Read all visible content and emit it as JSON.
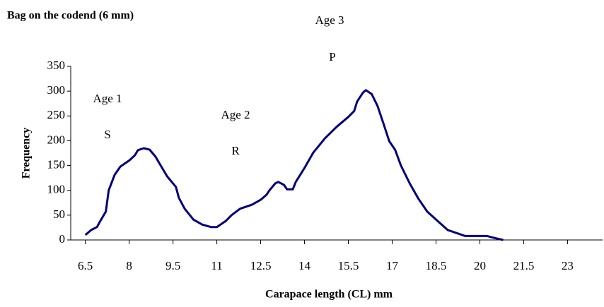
{
  "chart_data": {
    "type": "line",
    "title": "Bag on the codend (6 mm)",
    "x_label": "Carapace length (CL) mm",
    "y_label": "Frequency",
    "annotations": [
      "Age 1",
      "S",
      "Age 2",
      "R",
      "Age 3",
      "P"
    ],
    "x": [
      6.5,
      6.7,
      6.9,
      7.0,
      7.2,
      7.3,
      7.5,
      7.7,
      8.0,
      8.2,
      8.3,
      8.5,
      8.7,
      8.9,
      9.1,
      9.3,
      9.6,
      9.7,
      9.9,
      10.2,
      10.5,
      10.8,
      11.0,
      11.3,
      11.5,
      11.8,
      12.2,
      12.5,
      12.7,
      12.8,
      13.0,
      13.1,
      13.3,
      13.4,
      13.6,
      13.7,
      14.0,
      14.3,
      14.7,
      15.1,
      15.5,
      15.7,
      15.8,
      16.0,
      16.1,
      16.3,
      16.5,
      16.7,
      16.9,
      17.1,
      17.3,
      17.6,
      17.9,
      18.2,
      18.6,
      18.9,
      19.5,
      20.25,
      20.5,
      20.8
    ],
    "series": [
      {
        "name": "Frequency",
        "color": "#000080",
        "values": [
          10,
          20,
          26,
          37,
          57,
          100,
          131,
          148,
          160,
          171,
          181,
          185,
          182,
          168,
          148,
          128,
          107,
          85,
          63,
          41,
          31,
          26,
          26,
          38,
          50,
          63,
          71,
          81,
          91,
          100,
          114,
          117,
          111,
          102,
          102,
          117,
          145,
          176,
          205,
          228,
          248,
          260,
          279,
          297,
          302,
          294,
          270,
          235,
          199,
          182,
          150,
          114,
          83,
          57,
          36,
          20,
          8,
          8,
          4,
          0
        ]
      }
    ],
    "xlim": [
      6,
      24.2
    ],
    "xticks": [
      6.5,
      8,
      9.5,
      11,
      12.5,
      14,
      15.5,
      17,
      18.5,
      20,
      21.5,
      23
    ],
    "ylim": [
      0,
      350
    ],
    "yticks": [
      0,
      50,
      100,
      150,
      200,
      250,
      300,
      350
    ]
  }
}
